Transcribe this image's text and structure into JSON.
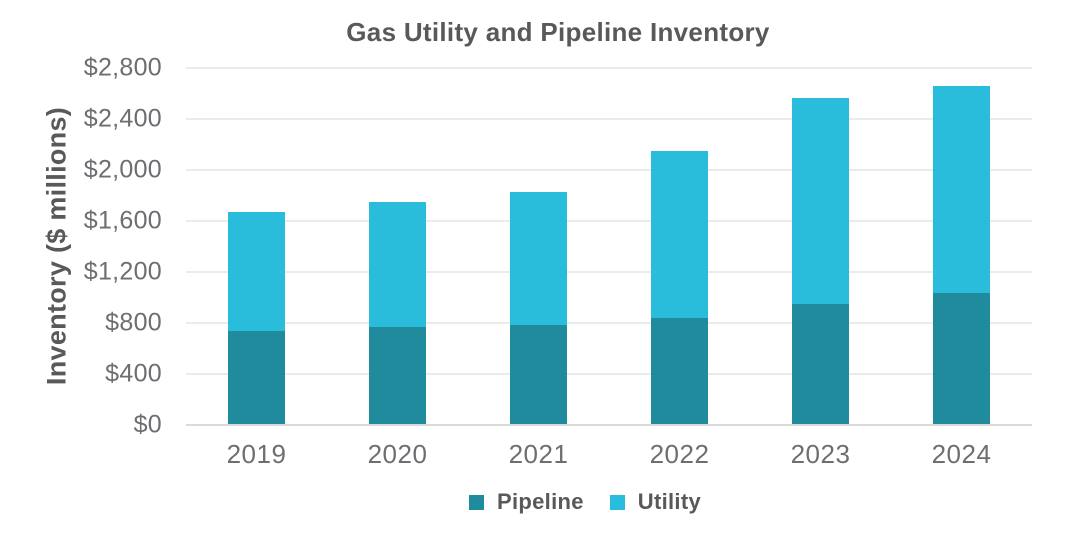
{
  "chart": {
    "title": "Gas Utility and Pipeline Inventory",
    "y_axis_title": "Inventory ($ millions)"
  },
  "chart_data": {
    "type": "bar",
    "stacked": true,
    "title": "Gas Utility and Pipeline Inventory",
    "xlabel": "",
    "ylabel": "Inventory ($ millions)",
    "categories": [
      "2019",
      "2020",
      "2021",
      "2022",
      "2023",
      "2024"
    ],
    "series": [
      {
        "name": "Pipeline",
        "color": "#1f8b9c",
        "values": [
          730,
          760,
          780,
          830,
          940,
          1030
        ]
      },
      {
        "name": "Utility",
        "color": "#2abddb",
        "values": [
          930,
          980,
          1040,
          1310,
          1620,
          1620
        ]
      }
    ],
    "totals": [
      1660,
      1740,
      1820,
      2140,
      2560,
      2650
    ],
    "ylim": [
      0,
      2800
    ],
    "ytick_interval": 400,
    "ytick_labels": [
      "$0",
      "$400",
      "$800",
      "$1,200",
      "$1,600",
      "$2,000",
      "$2,400",
      "$2,800"
    ],
    "grid": true,
    "legend_position": "bottom",
    "colors": {
      "title_text": "#58595b",
      "tick_text": "#6d6e71",
      "gridline": "#ebebeb",
      "axis_line": "#dadada",
      "background": "#ffffff"
    }
  }
}
